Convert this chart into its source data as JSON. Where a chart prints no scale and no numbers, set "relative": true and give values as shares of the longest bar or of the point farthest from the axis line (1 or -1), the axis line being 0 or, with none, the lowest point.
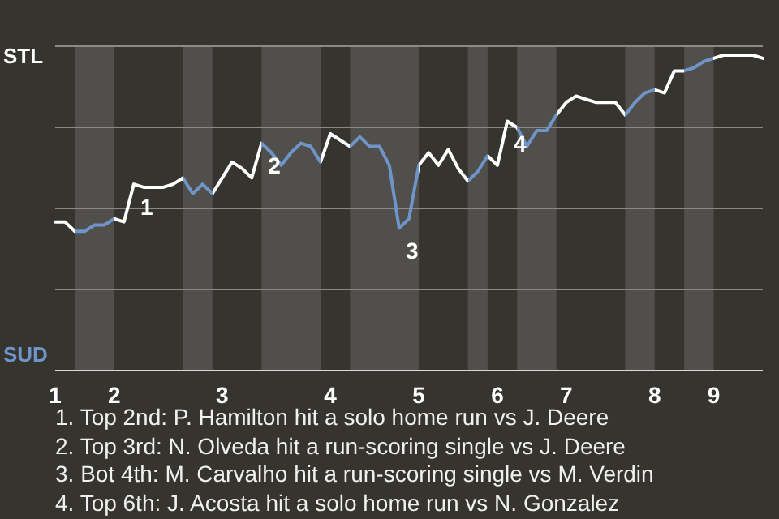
{
  "chart_data": {
    "type": "line",
    "relative": true,
    "categories": [
      "1",
      null,
      null,
      null,
      null,
      null,
      "2",
      null,
      null,
      null,
      null,
      null,
      null,
      null,
      null,
      null,
      null,
      "3",
      null,
      null,
      null,
      null,
      null,
      null,
      null,
      null,
      null,
      null,
      "4",
      null,
      null,
      null,
      null,
      null,
      null,
      null,
      null,
      "5",
      null,
      null,
      null,
      null,
      null,
      null,
      null,
      "6",
      null,
      null,
      null,
      null,
      null,
      null,
      "7",
      null,
      null,
      null,
      null,
      null,
      null,
      null,
      null,
      "8",
      null,
      null,
      null,
      null,
      null,
      "9",
      null,
      null,
      null,
      null,
      null
    ],
    "grid": "y",
    "legend": false,
    "marker": "none",
    "line_style": "solid",
    "values": [
      0.47,
      0.47,
      0.44,
      0.44,
      0.46,
      0.46,
      0.48,
      0.47,
      0.59,
      0.58,
      0.58,
      0.58,
      0.59,
      0.61,
      0.56,
      0.59,
      0.56,
      0.61,
      0.66,
      0.64,
      0.61,
      0.72,
      0.69,
      0.65,
      0.69,
      0.72,
      0.71,
      0.66,
      0.75,
      0.73,
      0.71,
      0.74,
      0.71,
      0.71,
      0.65,
      0.45,
      0.48,
      0.65,
      0.69,
      0.65,
      0.7,
      0.64,
      0.6,
      0.63,
      0.68,
      0.65,
      0.79,
      0.77,
      0.71,
      0.76,
      0.76,
      0.81,
      0.85,
      0.87,
      0.86,
      0.85,
      0.85,
      0.85,
      0.81,
      0.85,
      0.88,
      0.89,
      0.88,
      0.95,
      0.95,
      0.96,
      0.98,
      0.99,
      1,
      1,
      1,
      1,
      0.99
    ],
    "colors": [
      "#ffffff",
      "#ffffff",
      "#6f95c8",
      "#6f95c8",
      "#6f95c8",
      "#6f95c8",
      "#ffffff",
      "#ffffff",
      "#ffffff",
      "#ffffff",
      "#ffffff",
      "#ffffff",
      "#ffffff",
      "#6f95c8",
      "#6f95c8",
      "#6f95c8",
      "#ffffff",
      "#ffffff",
      "#ffffff",
      "#ffffff",
      "#ffffff",
      "#6f95c8",
      "#6f95c8",
      "#6f95c8",
      "#6f95c8",
      "#6f95c8",
      "#6f95c8",
      "#ffffff",
      "#ffffff",
      "#ffffff",
      "#6f95c8",
      "#6f95c8",
      "#6f95c8",
      "#6f95c8",
      "#6f95c8",
      "#6f95c8",
      "#6f95c8",
      "#ffffff",
      "#ffffff",
      "#ffffff",
      "#ffffff",
      "#ffffff",
      "#6f95c8",
      "#6f95c8",
      "#ffffff",
      "#ffffff",
      "#ffffff",
      "#6f95c8",
      "#6f95c8",
      "#6f95c8",
      "#6f95c8",
      "#ffffff",
      "#ffffff",
      "#ffffff",
      "#ffffff",
      "#ffffff",
      "#ffffff",
      "#ffffff",
      "#6f95c8",
      "#6f95c8",
      "#6f95c8",
      "#ffffff",
      "#ffffff",
      "#ffffff",
      "#6f95c8",
      "#6f95c8",
      "#6f95c8",
      "#ffffff",
      "#ffffff",
      "#ffffff",
      "#ffffff",
      "#ffffff",
      "#ffffff"
    ],
    "annotations": [
      "STL",
      "SUD",
      {
        "text": "1",
        "y": 0.59
      },
      {
        "text": "2",
        "y": 0.72
      },
      {
        "text": "3",
        "y": 0.45
      },
      {
        "text": "4",
        "y": 0.79
      },
      "1. Top 2nd: P. Hamilton hit a solo home run vs J. Deere",
      "2. Top 3rd: N. Olveda hit a run-scoring single vs J. Deere",
      "3. Bot 4th: M. Carvalho hit a run-scoring single vs M. Verdin",
      "4. Top 6th: J. Acosta hit a solo home run vs N. Gonzalez"
    ]
  }
}
